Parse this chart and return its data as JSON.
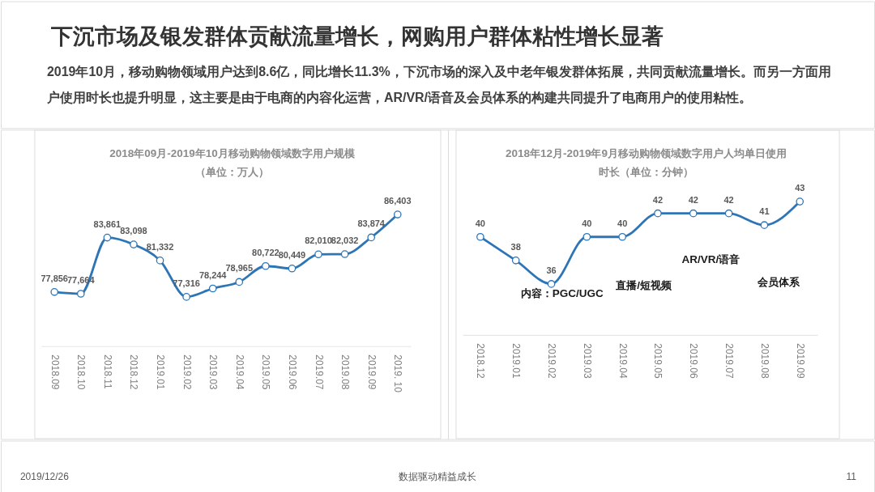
{
  "chart_data": [
    {
      "type": "other",
      "title": "下沉市场及银发群体贡献流量增长，网购用户群体粘性增长显著",
      "subtitle": "2019年10月，移动购物领域用户达到8.6亿，同比增长11.3%，下沉市场的深入及中老年银发群体拓展，共同贡献流量增长。而另一方面用户使用时长也提升明显，这主要是由于电商的内容化运营，AR/VR/语音及会员体系的构建共同提升了电商用户的使用粘性。",
      "annotations": [
        "2019/12/26",
        "数据驱动精益成长",
        "11"
      ]
    },
    {
      "type": "line",
      "title": "2018年09月-2019年10月移动购物领域数字用户规模",
      "subtitle": "（单位：万人）",
      "categories": [
        "2018.09",
        "2018.10",
        "2018.11",
        "2018.12",
        "2019.01",
        "2019.02",
        "2019.03",
        "2019.04",
        "2019.05",
        "2019.06",
        "2019.07",
        "2019.08",
        "2019.09",
        "2019. 10"
      ],
      "series": [
        {
          "color": "#2e75b6",
          "values": [
            77856,
            77664,
            83861,
            83098,
            81332,
            77316,
            78244,
            78965,
            80722,
            80449,
            82010,
            82032,
            83874,
            86403
          ],
          "value_labels": [
            "77,856",
            "77,664",
            "83,861",
            "83,098",
            "81,332",
            "77,316",
            "78,244",
            "78,965",
            "80,722",
            "80,449",
            "82,010",
            "82,032",
            "83,874",
            "86,403"
          ]
        }
      ],
      "marker": "circle",
      "line_style": "solid",
      "tick_labels": "x"
    },
    {
      "type": "line",
      "title": "2018年12月-2019年9月移动购物领域数字用户人均单日使用时长（单位：分钟）",
      "categories": [
        "2018.12",
        "2019.01",
        "2019.02",
        "2019.03",
        "2019.04",
        "2019.05",
        "2019.06",
        "2019.07",
        "2019.08",
        "2019.09"
      ],
      "series": [
        {
          "color": "#2e75b6",
          "values": [
            40,
            38,
            36,
            40,
            40,
            42,
            42,
            42,
            41,
            43
          ]
        }
      ],
      "data_labels": true,
      "marker": "circle",
      "line_style": "solid",
      "tick_labels": "x",
      "annotations": [
        "内容：PGC/UGC",
        "直播/短视频",
        "AR/VR/语音",
        "会员体系"
      ]
    }
  ]
}
